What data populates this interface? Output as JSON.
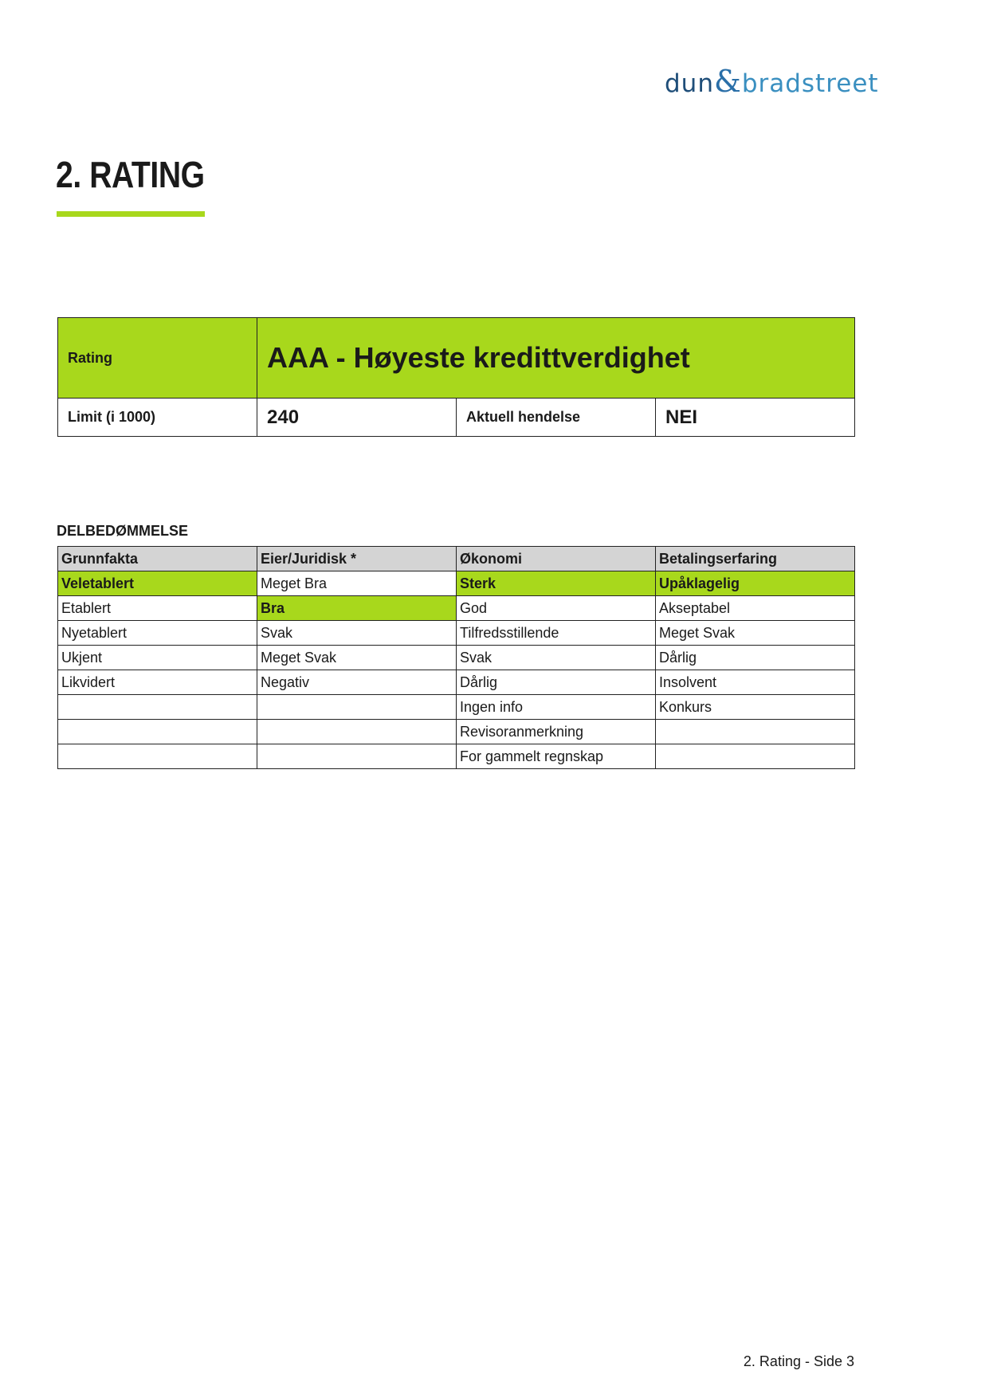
{
  "logo": {
    "left": "dun",
    "amp": "&",
    "right": "bradstreet"
  },
  "section_title": "2. RATING",
  "colors": {
    "accent": "#a8d81c",
    "header_gray": "#d4d4d4",
    "logo_blue": "#1f4e79"
  },
  "rating_table": {
    "rating_label": "Rating",
    "rating_value": "AAA - Høyeste kredittverdighet",
    "limit_label": "Limit (i 1000)",
    "limit_value": "240",
    "event_label": "Aktuell hendelse",
    "event_value": "NEI"
  },
  "sub_rating": {
    "heading": "DELBEDØMMELSE",
    "columns": [
      "Grunnfakta",
      "Eier/Juridisk *",
      "Økonomi",
      "Betalingserfaring"
    ],
    "rows": [
      [
        "Veletablert",
        "Meget Bra",
        "Sterk",
        "Upåklagelig"
      ],
      [
        "Etablert",
        "Bra",
        "God",
        "Akseptabel"
      ],
      [
        "Nyetablert",
        "Svak",
        "Tilfredsstillende",
        "Meget Svak"
      ],
      [
        "Ukjent",
        "Meget Svak",
        "Svak",
        "Dårlig"
      ],
      [
        "Likvidert",
        "Negativ",
        "Dårlig",
        "Insolvent"
      ],
      [
        "",
        "",
        "Ingen info",
        "Konkurs"
      ],
      [
        "",
        "",
        "Revisoranmerkning",
        ""
      ],
      [
        "",
        "",
        "For gammelt regnskap",
        ""
      ]
    ],
    "selected": [
      [
        0,
        0
      ],
      [
        1,
        1
      ],
      [
        0,
        2
      ],
      [
        0,
        3
      ]
    ]
  },
  "footer": "2. Rating - Side 3"
}
